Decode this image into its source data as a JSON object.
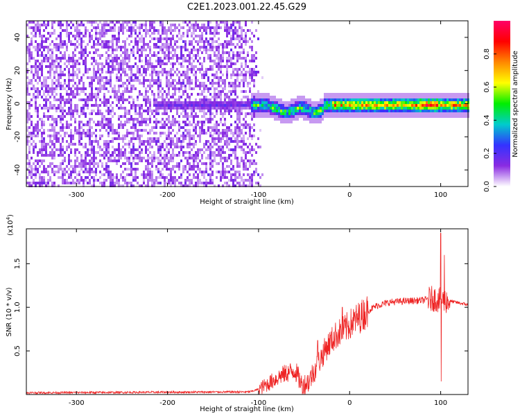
{
  "title": "C2E1.2023.001.22.45.G29",
  "chart_data": [
    {
      "type": "heatmap",
      "xlabel": "Height of straight line (km)",
      "ylabel": "Frequency (Hz)",
      "xlim": [
        -355,
        130
      ],
      "ylim": [
        -50,
        50
      ],
      "xticks": [
        -300,
        -200,
        -100,
        0,
        100
      ],
      "yticks": [
        -40,
        -20,
        0,
        20,
        40
      ],
      "colorbar": {
        "label": "Normalized spectral amplitude",
        "range": [
          0,
          1
        ],
        "ticks": [
          0.0,
          0.2,
          0.4,
          0.6,
          0.8
        ],
        "tick_labels": [
          "0.0",
          "0.2",
          "0.4",
          "0.6",
          "0.8"
        ],
        "colormap": "rainbow",
        "colors": [
          "#ffffff",
          "#8a2be2",
          "#3333ff",
          "#00cccc",
          "#00ee00",
          "#ffff00",
          "#ff8800",
          "#ff0000",
          "#ff0066"
        ]
      },
      "regions": [
        {
          "description_label": "noise",
          "x": [
            -355,
            -100
          ],
          "y": [
            -50,
            50
          ],
          "amplitude": [
            0.0,
            0.15
          ]
        },
        {
          "description_label": "signal-band",
          "x": [
            -110,
            130
          ],
          "center_y": 0,
          "amplitude_peak": 1.0
        }
      ]
    },
    {
      "type": "line",
      "xlabel": "Height of straight line (km)",
      "ylabel": "SNR (10 * v/v)",
      "y_multiplier_label": "(x10",
      "y_multiplier_exp": "4",
      "y_multiplier_close": ")",
      "xlim": [
        -355,
        130
      ],
      "ylim": [
        0,
        1.9
      ],
      "xticks": [
        -300,
        -200,
        -100,
        0,
        100
      ],
      "yticks": [
        0.5,
        1.0,
        1.5
      ],
      "ytick_labels": [
        "0.5",
        "1.0",
        "1.5"
      ],
      "color": "#ee2222",
      "series_profile": [
        {
          "x": -355,
          "y": 0.02
        },
        {
          "x": -110,
          "y": 0.03
        },
        {
          "x": -100,
          "y": 0.06
        },
        {
          "x": -90,
          "y": 0.12
        },
        {
          "x": -75,
          "y": 0.22
        },
        {
          "x": -60,
          "y": 0.28
        },
        {
          "x": -52,
          "y": 0.1
        },
        {
          "x": -45,
          "y": 0.15
        },
        {
          "x": -35,
          "y": 0.35
        },
        {
          "x": -25,
          "y": 0.55
        },
        {
          "x": -15,
          "y": 0.68
        },
        {
          "x": -5,
          "y": 0.75
        },
        {
          "x": 0,
          "y": 0.8
        },
        {
          "x": 10,
          "y": 0.88
        },
        {
          "x": 20,
          "y": 0.96
        },
        {
          "x": 30,
          "y": 1.02
        },
        {
          "x": 45,
          "y": 1.06
        },
        {
          "x": 60,
          "y": 1.07
        },
        {
          "x": 80,
          "y": 1.08
        },
        {
          "x": 92,
          "y": 1.1
        },
        {
          "x": 100,
          "y": 1.08
        },
        {
          "x": 110,
          "y": 1.07
        },
        {
          "x": 130,
          "y": 1.03
        }
      ],
      "spikes": [
        {
          "x": 100,
          "y": 1.85
        },
        {
          "x": 100.5,
          "y": 0.15
        },
        {
          "x": 104,
          "y": 1.6
        },
        {
          "x": -35,
          "y": 0.62
        },
        {
          "x": -8,
          "y": 1.0
        }
      ]
    }
  ]
}
